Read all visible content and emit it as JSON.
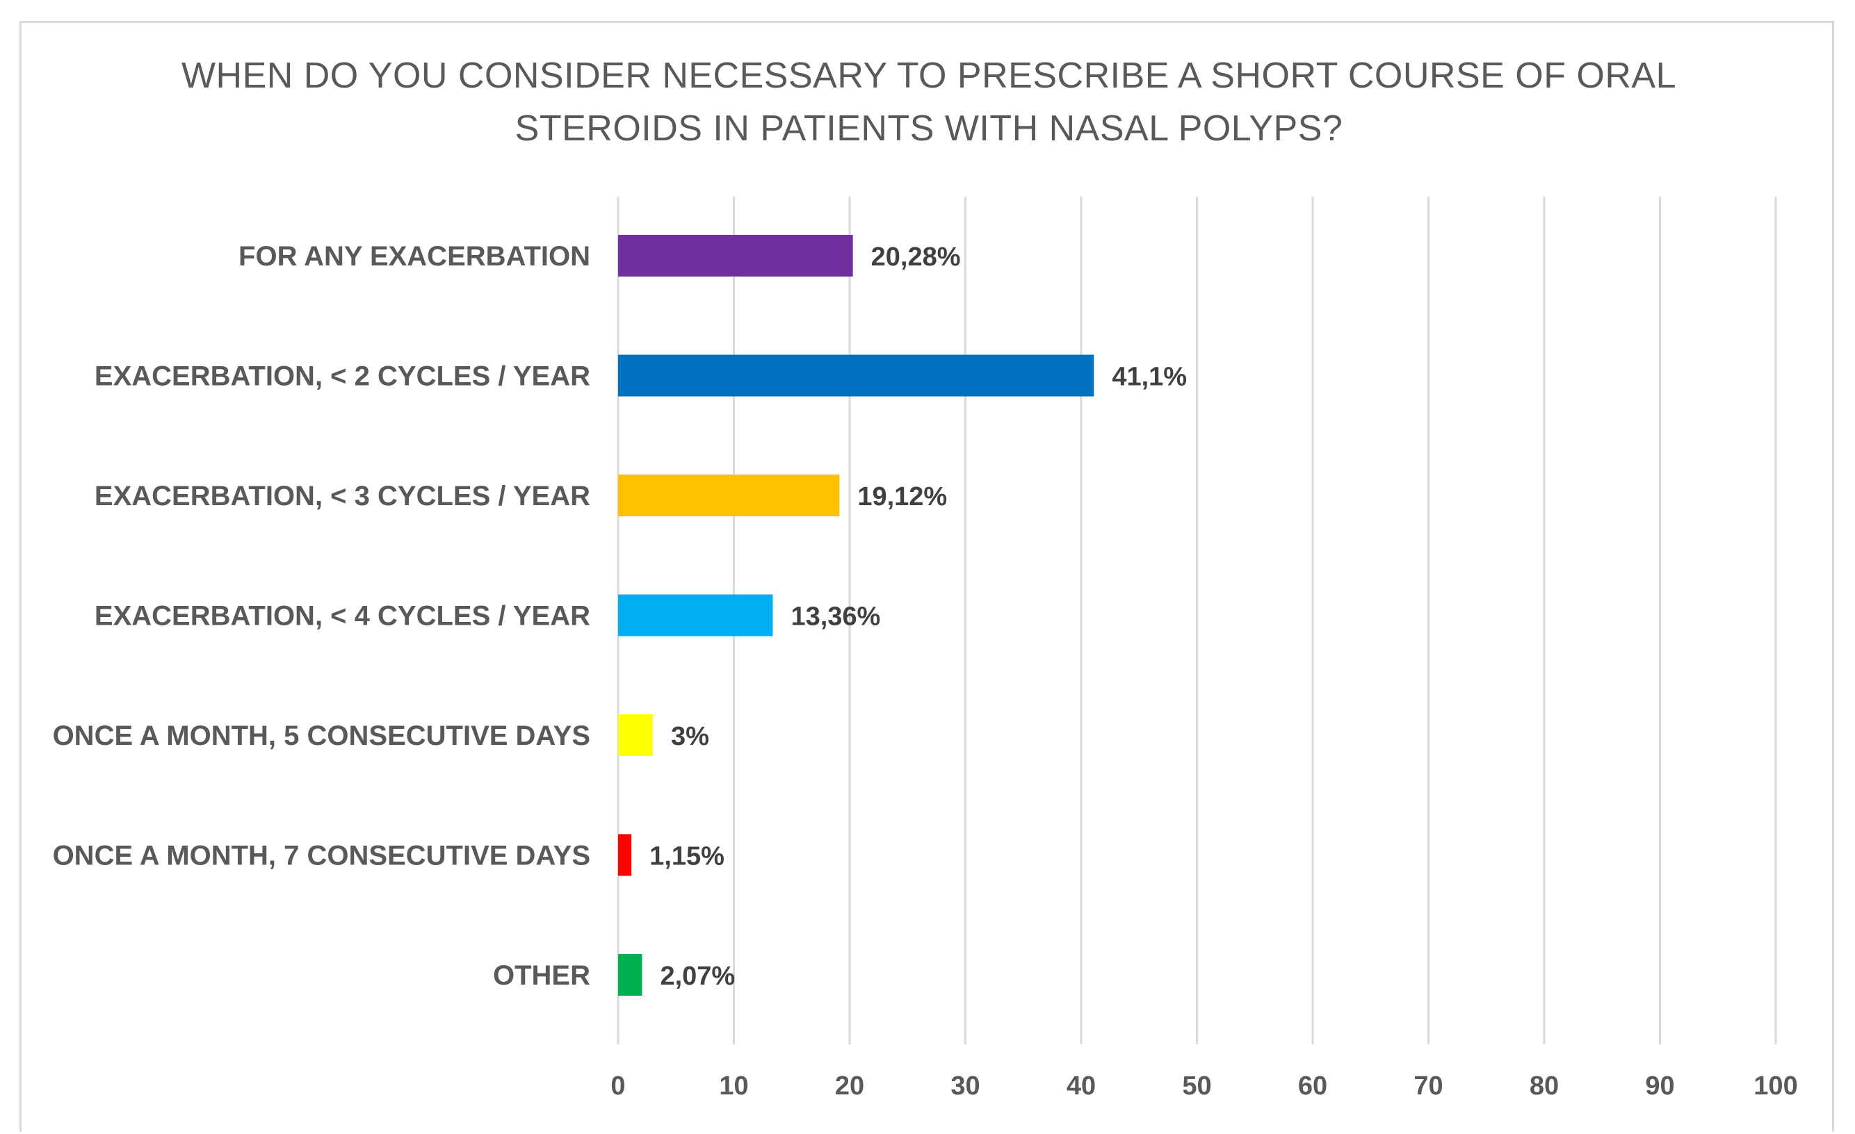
{
  "chart_data": {
    "type": "bar",
    "orientation": "horizontal",
    "title_lines": [
      "WHEN DO YOU CONSIDER NECESSARY TO PRESCRIBE A SHORT COURSE OF ORAL",
      "STEROIDS IN PATIENTS WITH NASAL POLYPS?"
    ],
    "categories": [
      "FOR ANY EXACERBATION",
      "EXACERBATION, < 2 CYCLES / YEAR",
      "EXACERBATION, < 3 CYCLES / YEAR",
      "EXACERBATION, < 4 CYCLES / YEAR",
      "ONCE A MONTH, 5 CONSECUTIVE DAYS",
      "ONCE A MONTH, 7 CONSECUTIVE DAYS",
      "OTHER"
    ],
    "values": [
      20.28,
      41.1,
      19.12,
      13.36,
      3,
      1.15,
      2.07
    ],
    "value_labels": [
      "20,28%",
      "41,1%",
      "19,12%",
      "13,36%",
      "3%",
      "1,15%",
      "2,07%"
    ],
    "colors": [
      "#7030A0",
      "#0070C0",
      "#FFC000",
      "#00B0F0",
      "#FFFF00",
      "#FF0000",
      "#00B050"
    ],
    "xlim": [
      0,
      100
    ],
    "xticks": [
      0,
      10,
      20,
      30,
      40,
      50,
      60,
      70,
      80,
      90,
      100
    ],
    "grid": true,
    "legend": "none"
  }
}
